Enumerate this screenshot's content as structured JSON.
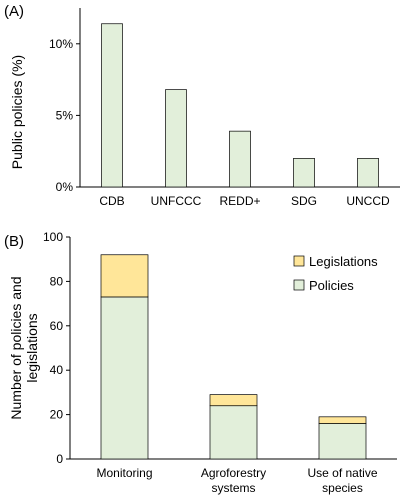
{
  "chart_data": [
    {
      "panel_label": "(A)",
      "type": "bar",
      "ylabel": "Public policies (%)",
      "xlabel": "",
      "categories": [
        "CDB",
        "UNFCCC",
        "REDD+",
        "SDG",
        "UNCCD"
      ],
      "values": [
        11.4,
        6.8,
        3.9,
        2.0,
        2.0
      ],
      "ylim": [
        0,
        12.5
      ],
      "yticks": [
        {
          "value": 0,
          "label": "0%"
        },
        {
          "value": 5,
          "label": "5%"
        },
        {
          "value": 10,
          "label": "10%"
        }
      ],
      "bar_color": "#e2efda",
      "grid": false,
      "legend": false
    },
    {
      "panel_label": "(B)",
      "type": "bar",
      "stacked": true,
      "ylabel": "Number of policies and legislations",
      "xlabel": "",
      "categories": [
        {
          "lines": [
            "Monitoring"
          ]
        },
        {
          "lines": [
            "Agroforestry",
            "systems"
          ]
        },
        {
          "lines": [
            "Use of native",
            "species"
          ]
        }
      ],
      "series": [
        {
          "name": "Policies",
          "color": "#e2efda",
          "values": [
            73,
            24,
            16
          ]
        },
        {
          "name": "Legislations",
          "color": "#ffe699",
          "values": [
            19,
            5,
            3
          ]
        }
      ],
      "ylim": [
        0,
        100
      ],
      "yticks": [
        {
          "value": 0,
          "label": "0"
        },
        {
          "value": 20,
          "label": "20"
        },
        {
          "value": 40,
          "label": "40"
        },
        {
          "value": 60,
          "label": "60"
        },
        {
          "value": 80,
          "label": "80"
        },
        {
          "value": 100,
          "label": "100"
        }
      ],
      "grid": false,
      "legend": "top-right",
      "legend_order": [
        "Legislations",
        "Policies"
      ]
    }
  ]
}
